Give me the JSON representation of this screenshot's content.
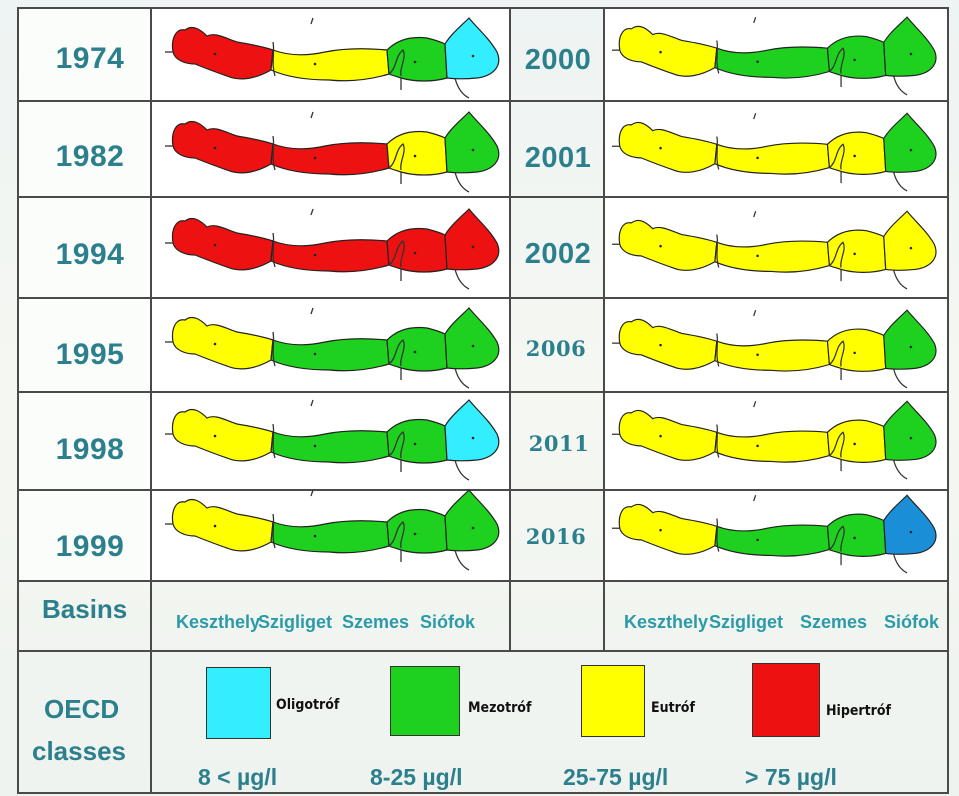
{
  "colors": {
    "oligo": "#33eeff",
    "mezo": "#1fd11f",
    "eutro": "#ffff00",
    "hiper": "#ee1111",
    "dark_blue": "#1a8fd8"
  },
  "left_rows": [
    {
      "year": "1974",
      "basins": [
        "hiper",
        "eutro",
        "mezo",
        "oligo"
      ]
    },
    {
      "year": "1982",
      "basins": [
        "hiper",
        "hiper",
        "eutro",
        "mezo"
      ]
    },
    {
      "year": "1994",
      "basins": [
        "hiper",
        "hiper",
        "hiper",
        "hiper"
      ]
    },
    {
      "year": "1995",
      "basins": [
        "eutro",
        "mezo",
        "mezo",
        "mezo"
      ]
    },
    {
      "year": "1998",
      "basins": [
        "eutro",
        "mezo",
        "mezo",
        "oligo"
      ]
    },
    {
      "year": "1999",
      "basins": [
        "eutro",
        "mezo",
        "mezo",
        "mezo"
      ]
    }
  ],
  "right_rows": [
    {
      "year": "2000",
      "basins": [
        "eutro",
        "mezo",
        "mezo",
        "mezo"
      ]
    },
    {
      "year": "2001",
      "basins": [
        "eutro",
        "eutro",
        "eutro",
        "mezo"
      ]
    },
    {
      "year": "2002",
      "basins": [
        "eutro",
        "eutro",
        "eutro",
        "eutro"
      ]
    },
    {
      "year": "2006",
      "basins": [
        "eutro",
        "eutro",
        "eutro",
        "mezo"
      ]
    },
    {
      "year": "2011",
      "basins": [
        "eutro",
        "eutro",
        "eutro",
        "mezo"
      ]
    },
    {
      "year": "2016",
      "basins": [
        "eutro",
        "mezo",
        "mezo",
        "dark_blue"
      ]
    }
  ],
  "basins_header": "Basins",
  "basin_names": [
    "Keszthely",
    "Szigliget",
    "Szemes",
    "Siófok"
  ],
  "oecd_header": [
    "OECD",
    "classes"
  ],
  "legend": [
    {
      "key": "oligo",
      "name": "Oligotróf",
      "range": "8 < µg/l"
    },
    {
      "key": "mezo",
      "name": "Mezotróf",
      "range": "8-25 µg/l"
    },
    {
      "key": "eutro",
      "name": "Eutróf",
      "range": "25-75 µg/l"
    },
    {
      "key": "hiper",
      "name": "Hipertróf",
      "range": "> 75 µg/l"
    }
  ]
}
